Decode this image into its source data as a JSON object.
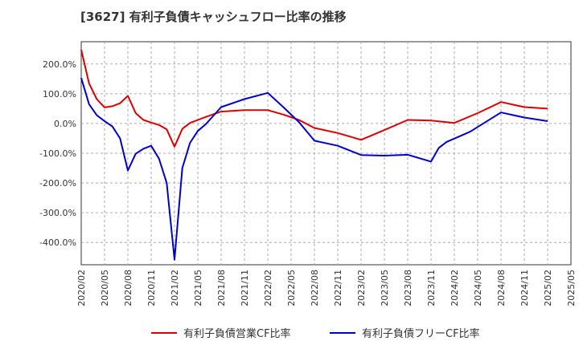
{
  "chart_data": {
    "type": "line",
    "title": "[3627]  有利子負債キャッシュフロー比率の推移",
    "xlabel": "",
    "ylabel": "",
    "ylim": [
      -475,
      275
    ],
    "y_ticks": [
      200,
      100,
      0,
      -100,
      -200,
      -300,
      -400
    ],
    "y_tick_labels": [
      "200.0%",
      "100.0%",
      "0.0%",
      "-100.0%",
      "-200.0%",
      "-300.0%",
      "-400.0%"
    ],
    "x_tick_labels": [
      "2020/02",
      "2020/05",
      "2020/08",
      "2020/11",
      "2021/02",
      "2021/05",
      "2021/08",
      "2021/11",
      "2022/02",
      "2022/05",
      "2022/08",
      "2022/11",
      "2023/02",
      "2023/05",
      "2023/08",
      "2023/11",
      "2024/02",
      "2024/05",
      "2024/08",
      "2024/11",
      "2025/02",
      "2025/05"
    ],
    "grid": true,
    "legend_position": "bottom",
    "series": [
      {
        "name": "有利子負債営業CF比率",
        "color": "#dd0000",
        "points": [
          [
            0,
            248
          ],
          [
            1,
            135
          ],
          [
            2,
            82
          ],
          [
            3,
            54
          ],
          [
            4,
            58
          ],
          [
            5,
            68
          ],
          [
            6,
            93
          ],
          [
            7,
            35
          ],
          [
            8,
            12
          ],
          [
            9,
            3
          ],
          [
            10,
            -5
          ],
          [
            11,
            -20
          ],
          [
            12,
            -78
          ],
          [
            13,
            -18
          ],
          [
            14,
            2
          ],
          [
            15,
            12
          ],
          [
            16,
            22
          ],
          [
            18,
            40
          ],
          [
            21,
            45
          ],
          [
            24,
            45
          ],
          [
            26,
            30
          ],
          [
            28,
            12
          ],
          [
            30,
            -15
          ],
          [
            33,
            -32
          ],
          [
            36,
            -55
          ],
          [
            39,
            -22
          ],
          [
            42,
            12
          ],
          [
            45,
            10
          ],
          [
            48,
            2
          ],
          [
            51,
            35
          ],
          [
            54,
            72
          ],
          [
            57,
            55
          ],
          [
            60,
            50
          ]
        ]
      },
      {
        "name": "有利子負債フリーCF比率",
        "color": "#0000cc",
        "points": [
          [
            0,
            153
          ],
          [
            1,
            65
          ],
          [
            2,
            28
          ],
          [
            3,
            8
          ],
          [
            4,
            -10
          ],
          [
            5,
            -50
          ],
          [
            6,
            -158
          ],
          [
            7,
            -102
          ],
          [
            8,
            -85
          ],
          [
            9,
            -75
          ],
          [
            10,
            -118
          ],
          [
            11,
            -200
          ],
          [
            12,
            -458
          ],
          [
            13,
            -150
          ],
          [
            14,
            -65
          ],
          [
            15,
            -25
          ],
          [
            16,
            -3
          ],
          [
            18,
            55
          ],
          [
            21,
            82
          ],
          [
            24,
            103
          ],
          [
            26,
            55
          ],
          [
            28,
            5
          ],
          [
            30,
            -58
          ],
          [
            33,
            -75
          ],
          [
            36,
            -106
          ],
          [
            39,
            -108
          ],
          [
            42,
            -105
          ],
          [
            45,
            -128
          ],
          [
            46,
            -82
          ],
          [
            47,
            -62
          ],
          [
            50,
            -28
          ],
          [
            54,
            37
          ],
          [
            57,
            20
          ],
          [
            60,
            8
          ]
        ]
      }
    ]
  }
}
